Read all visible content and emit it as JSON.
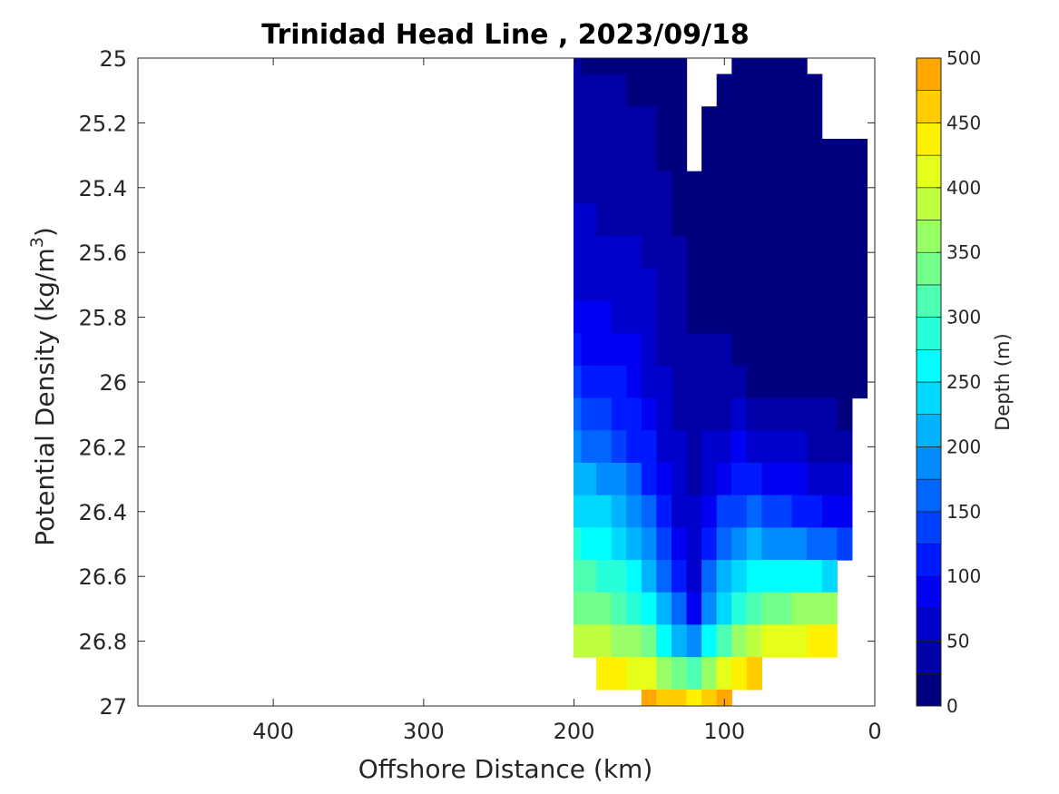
{
  "chart_data": {
    "type": "contour",
    "title": "Trinidad Head Line , 2023/09/18",
    "xlabel": "Offshore Distance (km)",
    "ylabel_prefix": "Potential Density (kg/m",
    "ylabel_exponent": "3",
    "ylabel_suffix": ")",
    "xlim": [
      490,
      0
    ],
    "x_reversed": true,
    "ylim": [
      25,
      27
    ],
    "y_reversed": true,
    "x_ticks": [
      400,
      300,
      200,
      100,
      0
    ],
    "y_ticks": [
      "25",
      "25.2",
      "25.4",
      "25.6",
      "25.8",
      "26",
      "26.2",
      "26.4",
      "26.6",
      "26.8",
      "27"
    ],
    "colorbar": {
      "label": "Depth (m)",
      "range": [
        0,
        500
      ],
      "ticks": [
        0,
        50,
        100,
        150,
        200,
        250,
        300,
        350,
        400,
        450,
        500
      ],
      "level_step": 25,
      "colors": [
        "#00007F",
        "#0000A6",
        "#0000CC",
        "#0000F2",
        "#001AFF",
        "#0040FF",
        "#0066FF",
        "#008CFF",
        "#00B3FF",
        "#00D9FF",
        "#00FFFF",
        "#26FFD9",
        "#4DFFB3",
        "#73FF8C",
        "#99FF66",
        "#BFFF40",
        "#E6FF1A",
        "#FFF200",
        "#FFCC00",
        "#FFA600",
        "#FF8000",
        "#FF5900",
        "#FF3300",
        "#F20D00",
        "#CC0000",
        "#A60000"
      ]
    },
    "depth_series": {
      "description": "Depth (m) of each isopycnal along the stations",
      "x": [
        200,
        190,
        180,
        170,
        160,
        150,
        140,
        130,
        120,
        110,
        100,
        90,
        80,
        70,
        60,
        50,
        40,
        30,
        20,
        10
      ],
      "sigma": [
        25.0,
        25.1,
        25.2,
        25.3,
        25.4,
        25.5,
        25.6,
        25.7,
        25.8,
        25.9,
        26.0,
        26.1,
        26.2,
        26.3,
        26.4,
        26.5,
        26.6,
        26.7,
        26.8,
        26.9,
        27.0
      ],
      "depth": [
        [
          25,
          24,
          23,
          21,
          20,
          18,
          12,
          10,
          null,
          null,
          null,
          8,
          7,
          6,
          5,
          5,
          null,
          null,
          null,
          null
        ],
        [
          30,
          29,
          28,
          26,
          24,
          22,
          15,
          12,
          null,
          null,
          10,
          9,
          8,
          7,
          6,
          6,
          5,
          null,
          null,
          null
        ],
        [
          35,
          34,
          32,
          29,
          28,
          26,
          18,
          14,
          null,
          12,
          11,
          10,
          9,
          8,
          7,
          7,
          5,
          null,
          null,
          null
        ],
        [
          40,
          39,
          37,
          34,
          32,
          30,
          22,
          16,
          null,
          14,
          13,
          12,
          10,
          9,
          8,
          8,
          7,
          5,
          4,
          3
        ],
        [
          45,
          44,
          42,
          40,
          38,
          34,
          26,
          20,
          16,
          16,
          15,
          14,
          12,
          10,
          9,
          9,
          8,
          6,
          5,
          4
        ],
        [
          52,
          50,
          48,
          47,
          44,
          40,
          30,
          24,
          18,
          18,
          16,
          15,
          13,
          11,
          10,
          10,
          9,
          7,
          6,
          5
        ],
        [
          60,
          58,
          56,
          54,
          50,
          46,
          34,
          27,
          20,
          20,
          18,
          16,
          14,
          12,
          11,
          11,
          10,
          8,
          7,
          6
        ],
        [
          72,
          68,
          66,
          64,
          58,
          52,
          38,
          30,
          22,
          22,
          20,
          18,
          16,
          14,
          12,
          12,
          11,
          9,
          8,
          7
        ],
        [
          88,
          82,
          78,
          74,
          66,
          58,
          42,
          33,
          24,
          24,
          22,
          20,
          18,
          16,
          14,
          13,
          12,
          10,
          9,
          8
        ],
        [
          105,
          98,
          92,
          86,
          76,
          66,
          48,
          36,
          27,
          27,
          25,
          22,
          20,
          18,
          16,
          15,
          14,
          12,
          10,
          9
        ],
        [
          125,
          118,
          110,
          102,
          88,
          74,
          54,
          40,
          30,
          30,
          28,
          26,
          24,
          22,
          20,
          18,
          16,
          14,
          12,
          10
        ],
        [
          150,
          140,
          130,
          120,
          102,
          84,
          62,
          46,
          34,
          38,
          42,
          50,
          48,
          44,
          40,
          34,
          30,
          26,
          24,
          null
        ],
        [
          185,
          172,
          160,
          146,
          124,
          100,
          74,
          54,
          38,
          52,
          66,
          78,
          74,
          68,
          60,
          54,
          46,
          42,
          40,
          null
        ],
        [
          215,
          205,
          192,
          176,
          150,
          120,
          88,
          62,
          44,
          70,
          94,
          108,
          104,
          98,
          90,
          82,
          70,
          60,
          58,
          null
        ],
        [
          245,
          238,
          226,
          210,
          182,
          150,
          110,
          74,
          50,
          94,
          128,
          145,
          150,
          142,
          132,
          122,
          110,
          96,
          90,
          null
        ],
        [
          275,
          268,
          258,
          242,
          215,
          182,
          138,
          92,
          56,
          120,
          162,
          190,
          200,
          196,
          188,
          175,
          160,
          150,
          140,
          null
        ],
        [
          305,
          300,
          290,
          276,
          250,
          218,
          170,
          116,
          64,
          150,
          200,
          236,
          256,
          262,
          262,
          260,
          250,
          240,
          null,
          null
        ],
        [
          340,
          336,
          328,
          316,
          296,
          264,
          212,
          150,
          90,
          185,
          245,
          290,
          318,
          334,
          344,
          350,
          352,
          352,
          null,
          null
        ],
        [
          392,
          385,
          378,
          368,
          352,
          326,
          272,
          210,
          180,
          250,
          305,
          350,
          382,
          400,
          412,
          420,
          425,
          428,
          null,
          null
        ],
        [
          null,
          null,
          440,
          432,
          420,
          404,
          370,
          330,
          310,
          360,
          400,
          432,
          456,
          null,
          null,
          null,
          null,
          null,
          null,
          null
        ],
        [
          null,
          null,
          null,
          null,
          null,
          480,
          462,
          450,
          440,
          470,
          490,
          null,
          null,
          null,
          null,
          null,
          null,
          null,
          null,
          null
        ]
      ]
    }
  }
}
